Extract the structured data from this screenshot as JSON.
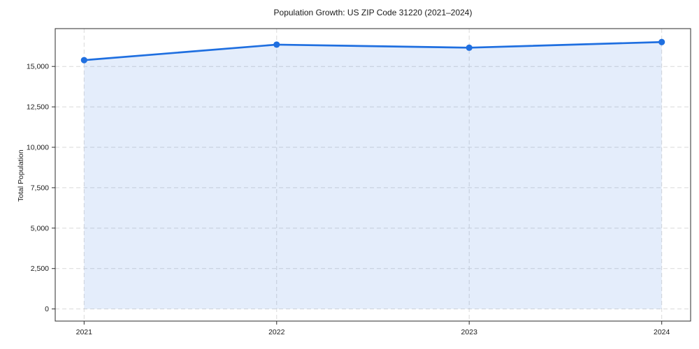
{
  "chart_data": {
    "type": "line",
    "subtype": "area-filled-line-with-markers",
    "title": "Population Growth: US ZIP Code 31220 (2021–2024)",
    "xlabel": "",
    "ylabel": "Total Population",
    "x": [
      2021,
      2022,
      2023,
      2024
    ],
    "xtick_labels": [
      "2021",
      "2022",
      "2023",
      "2024"
    ],
    "series": [
      {
        "name": "Total Population",
        "values": [
          15390,
          16350,
          16160,
          16510
        ]
      }
    ],
    "yticks": [
      0,
      2500,
      5000,
      7500,
      10000,
      12500,
      15000
    ],
    "ytick_labels": [
      "0",
      "2,500",
      "5,000",
      "7,500",
      "10,000",
      "12,500",
      "15,000"
    ],
    "xlim": [
      2020.85,
      2024.15
    ],
    "ylim": [
      -750,
      17340
    ],
    "grid": true,
    "grid_style": "dashed",
    "legend": false,
    "colors": {
      "line": "#1f6fe0",
      "marker": "#1f6fe0",
      "fill": "rgba(31, 111, 224, 0.12)",
      "grid": "#d9d9d9",
      "spine": "#2b2b2b",
      "text": "#1a1a1a"
    }
  }
}
